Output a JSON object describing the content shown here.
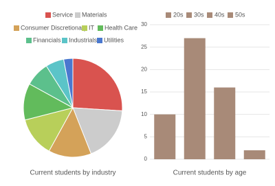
{
  "chart_data": [
    {
      "type": "pie",
      "title": "Current students by industry",
      "categories": [
        "Service",
        "Materials",
        "Consumer Discretionary",
        "IT",
        "Health Care",
        "Financials",
        "Industrials",
        "Utilities"
      ],
      "values": [
        26,
        18,
        14,
        13,
        12,
        8,
        6,
        3
      ],
      "colors": [
        "#d9534f",
        "#cccccc",
        "#d4a259",
        "#b8cf5a",
        "#62bb5c",
        "#5cc08c",
        "#5bc4c8",
        "#4a78cf"
      ]
    },
    {
      "type": "bar",
      "title": "Current students by age",
      "categories": [
        "20s",
        "30s",
        "40s",
        "50s"
      ],
      "values": [
        10,
        27,
        16,
        2
      ],
      "color": "#a88a78",
      "ylim": [
        0,
        30
      ],
      "yticks": [
        0,
        5,
        10,
        15,
        20,
        25,
        30
      ],
      "grid": true
    }
  ]
}
